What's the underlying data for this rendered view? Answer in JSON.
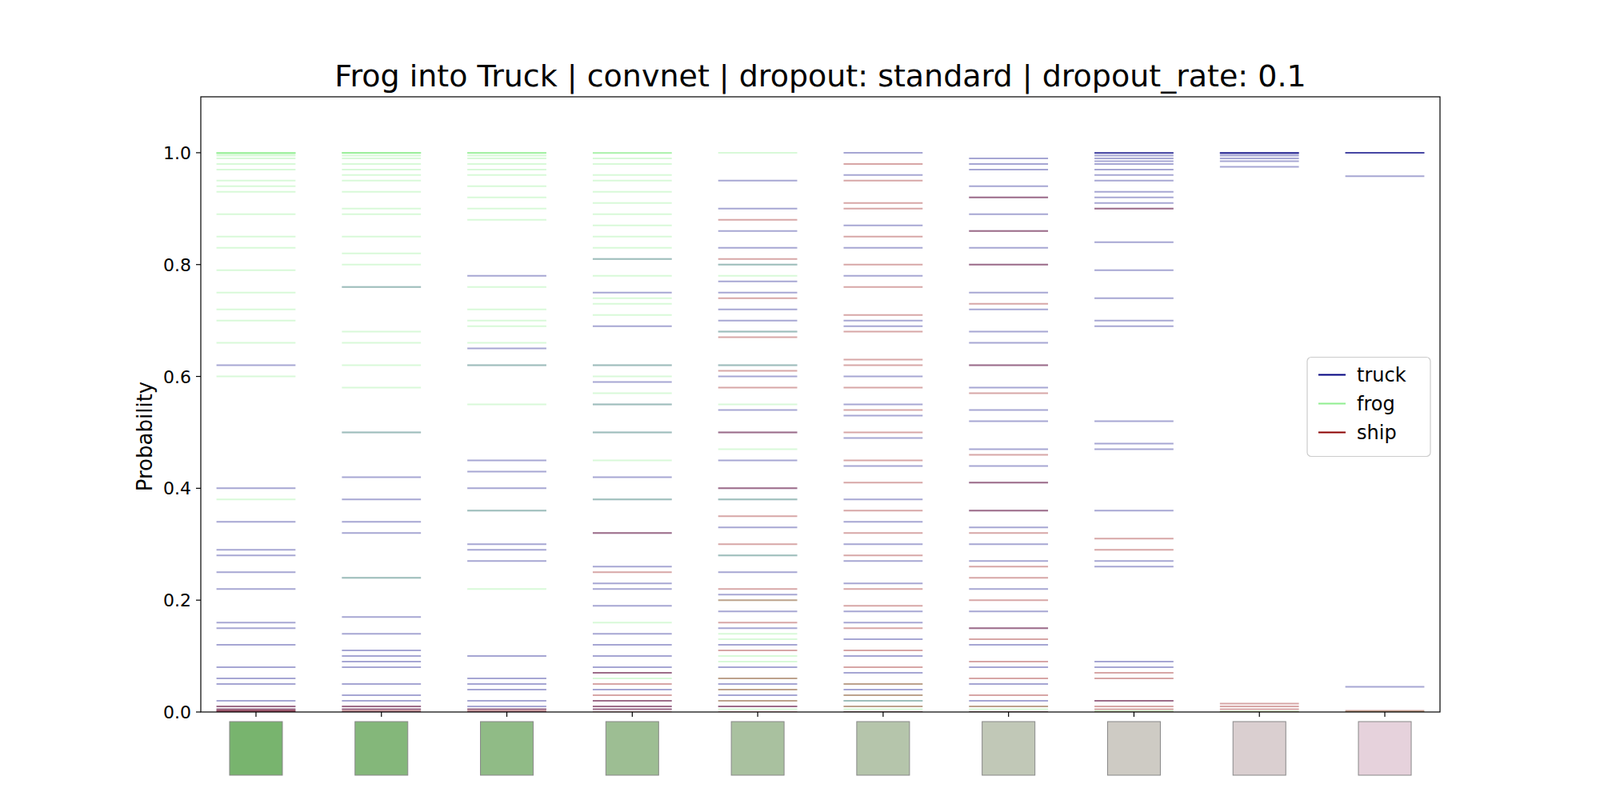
{
  "chart_data": {
    "type": "strip",
    "title": "Frog into Truck | convnet | dropout: standard | dropout_rate: 0.1",
    "y_label": "Probability",
    "categories": [
      null,
      null,
      null,
      null,
      null,
      null,
      null,
      null,
      null,
      null
    ],
    "ylim": [
      0,
      1.1
    ],
    "yticks": [
      {
        "value": 0,
        "label": "0.0"
      },
      {
        "value": 0.2,
        "label": "0.2"
      },
      {
        "value": 0.4,
        "label": "0.4"
      },
      {
        "value": 0.6,
        "label": "0.6"
      },
      {
        "value": 0.8,
        "label": "0.8"
      },
      {
        "value": 1.0,
        "label": "1.0"
      }
    ],
    "legend": "right",
    "tick_labels": "y",
    "marker": "hline",
    "series": [
      {
        "name": "truck",
        "color": "#000080",
        "values": [
          [
            0.0,
            0.002,
            0.005,
            0.01,
            0.02,
            0.05,
            0.06,
            0.08,
            0.12,
            0.15,
            0.16,
            0.22,
            0.25,
            0.28,
            0.29,
            0.34,
            0.4,
            0.62
          ],
          [
            0.0,
            0.005,
            0.01,
            0.02,
            0.03,
            0.05,
            0.08,
            0.09,
            0.1,
            0.11,
            0.14,
            0.17,
            0.24,
            0.32,
            0.34,
            0.38,
            0.42,
            0.5,
            0.76
          ],
          [
            0.0,
            0.005,
            0.01,
            0.02,
            0.04,
            0.05,
            0.06,
            0.1,
            0.27,
            0.29,
            0.3,
            0.36,
            0.4,
            0.43,
            0.45,
            0.62,
            0.65,
            0.78
          ],
          [
            0.005,
            0.01,
            0.02,
            0.04,
            0.07,
            0.08,
            0.1,
            0.12,
            0.14,
            0.19,
            0.22,
            0.23,
            0.26,
            0.32,
            0.38,
            0.42,
            0.5,
            0.55,
            0.59,
            0.62,
            0.69,
            0.75,
            0.81
          ],
          [
            0.01,
            0.03,
            0.05,
            0.08,
            0.12,
            0.15,
            0.18,
            0.21,
            0.25,
            0.28,
            0.33,
            0.38,
            0.4,
            0.45,
            0.5,
            0.54,
            0.6,
            0.62,
            0.68,
            0.7,
            0.72,
            0.75,
            0.77,
            0.8,
            0.83,
            0.86,
            0.9,
            0.95
          ],
          [
            0.0,
            0.02,
            0.04,
            0.07,
            0.1,
            0.13,
            0.16,
            0.18,
            0.23,
            0.27,
            0.3,
            0.34,
            0.38,
            0.44,
            0.49,
            0.53,
            0.55,
            0.6,
            0.69,
            0.7,
            0.78,
            0.83,
            0.87,
            0.96,
            1.0
          ],
          [
            0.0,
            0.02,
            0.05,
            0.08,
            0.12,
            0.15,
            0.18,
            0.22,
            0.27,
            0.3,
            0.33,
            0.36,
            0.41,
            0.44,
            0.47,
            0.52,
            0.54,
            0.58,
            0.62,
            0.66,
            0.68,
            0.72,
            0.75,
            0.8,
            0.83,
            0.86,
            0.89,
            0.92,
            0.94,
            0.97,
            0.98,
            0.99
          ],
          [
            1.0,
            1.0,
            0.999,
            0.995,
            0.99,
            0.985,
            0.98,
            0.97,
            0.96,
            0.95,
            0.93,
            0.92,
            0.91,
            0.9,
            0.84,
            0.79,
            0.74,
            0.7,
            0.69,
            0.52,
            0.48,
            0.47,
            0.36,
            0.27,
            0.26,
            0.09,
            0.08,
            0.02
          ],
          [
            1.0,
            1.0,
            1.0,
            0.998,
            0.995,
            0.99,
            0.985,
            0.975
          ],
          [
            1.0,
            1.0,
            1.0,
            0.958,
            0.045
          ]
        ]
      },
      {
        "name": "frog",
        "color": "#90ee90",
        "values": [
          [
            1.0,
            1.0,
            1.0,
            0.999,
            0.998,
            0.995,
            0.99,
            0.98,
            0.97,
            0.95,
            0.94,
            0.93,
            0.89,
            0.85,
            0.83,
            0.79,
            0.75,
            0.72,
            0.7,
            0.66,
            0.6,
            0.38
          ],
          [
            1.0,
            1.0,
            1.0,
            1.0,
            0.999,
            0.995,
            0.99,
            0.98,
            0.97,
            0.96,
            0.95,
            0.93,
            0.9,
            0.89,
            0.85,
            0.82,
            0.8,
            0.76,
            0.68,
            0.66,
            0.62,
            0.58,
            0.5,
            0.24
          ],
          [
            1.0,
            1.0,
            1.0,
            0.999,
            0.995,
            0.99,
            0.98,
            0.97,
            0.96,
            0.94,
            0.92,
            0.9,
            0.88,
            0.76,
            0.72,
            0.7,
            0.69,
            0.66,
            0.62,
            0.55,
            0.36,
            0.22
          ],
          [
            1.0,
            1.0,
            0.999,
            0.99,
            0.98,
            0.96,
            0.95,
            0.93,
            0.91,
            0.89,
            0.87,
            0.85,
            0.83,
            0.81,
            0.78,
            0.74,
            0.73,
            0.71,
            0.62,
            0.6,
            0.57,
            0.55,
            0.5,
            0.45,
            0.38,
            0.16,
            0.06
          ],
          [
            0.005,
            0.02,
            0.04,
            0.06,
            0.09,
            0.1,
            0.13,
            0.14,
            0.2,
            0.28,
            0.38,
            0.47,
            0.55,
            0.62,
            0.68,
            0.78,
            0.8,
            1.0
          ],
          [
            0.0,
            0.005,
            0.01,
            0.02,
            0.03,
            0.05
          ],
          [
            0.0,
            0.005,
            0.01
          ],
          [
            0.0,
            0.002
          ],
          [
            0.0,
            0.001
          ],
          [
            0.0,
            0.001
          ]
        ]
      },
      {
        "name": "ship",
        "color": "#8b0000",
        "values": [
          [
            0.0,
            0.001,
            0.003,
            0.005,
            0.01
          ],
          [
            0.0,
            0.002,
            0.005,
            0.01
          ],
          [
            0.0,
            0.002,
            0.005
          ],
          [
            0.0,
            0.005,
            0.01,
            0.02,
            0.03,
            0.05,
            0.07,
            0.25,
            0.32
          ],
          [
            0.0,
            0.01,
            0.02,
            0.04,
            0.06,
            0.11,
            0.16,
            0.2,
            0.22,
            0.3,
            0.35,
            0.4,
            0.5,
            0.58,
            0.61,
            0.67,
            0.74,
            0.81,
            0.88
          ],
          [
            0.0,
            0.01,
            0.03,
            0.05,
            0.08,
            0.11,
            0.15,
            0.19,
            0.22,
            0.28,
            0.32,
            0.36,
            0.41,
            0.45,
            0.5,
            0.54,
            0.58,
            0.62,
            0.63,
            0.68,
            0.71,
            0.76,
            0.8,
            0.85,
            0.9,
            0.91,
            0.95,
            0.98
          ],
          [
            0.0,
            0.01,
            0.03,
            0.06,
            0.09,
            0.13,
            0.15,
            0.2,
            0.24,
            0.26,
            0.32,
            0.36,
            0.41,
            0.46,
            0.57,
            0.62,
            0.73,
            0.8,
            0.86,
            0.92
          ],
          [
            0.0,
            0.005,
            0.01,
            0.02,
            0.06,
            0.07,
            0.29,
            0.31,
            0.9
          ],
          [
            0.0,
            0.005,
            0.01,
            0.015
          ],
          [
            0.0,
            0.002
          ]
        ]
      }
    ]
  }
}
